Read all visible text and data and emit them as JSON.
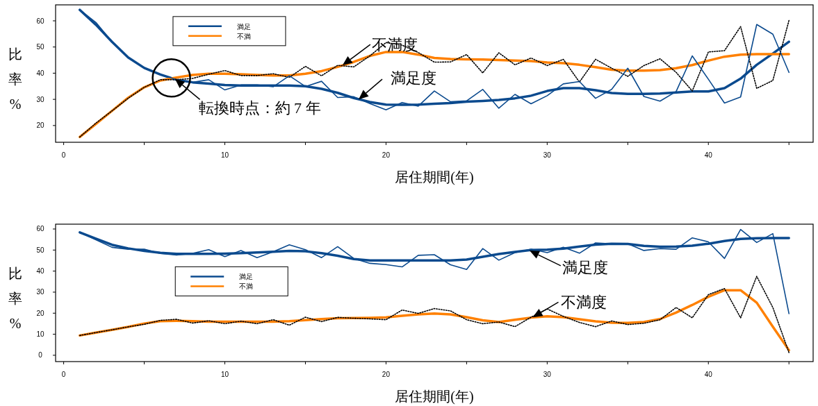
{
  "chart_data": [
    {
      "type": "line",
      "xlabel": "居住期間(年)",
      "ylabel": "比率%",
      "legend": "top left",
      "grid": false,
      "x": [
        1,
        2,
        3,
        4,
        5,
        6,
        7,
        8,
        9,
        10,
        11,
        12,
        13,
        14,
        15,
        16,
        17,
        18,
        19,
        20,
        21,
        22,
        23,
        24,
        25,
        26,
        27,
        28,
        29,
        30,
        31,
        32,
        33,
        34,
        35,
        36,
        37,
        38,
        39,
        40,
        41,
        42,
        43,
        44,
        45
      ],
      "xlim": [
        -0.5,
        46.5
      ],
      "xticks": [
        0,
        {
          "value": 5,
          "label": null
        },
        10,
        {
          "value": 15,
          "label": null
        },
        20,
        {
          "value": 25,
          "label": null
        },
        30,
        {
          "value": 35,
          "label": null
        },
        40,
        {
          "value": 45,
          "label": null
        }
      ],
      "ylim": [
        13.6,
        66.1
      ],
      "yticks": [
        20,
        30,
        40,
        50,
        60
      ],
      "series": [
        {
          "color": "#000000",
          "line_style": "dotted",
          "values": [
            15.6,
            20.9,
            25.6,
            30.4,
            34.6,
            37.5,
            37.5,
            38,
            39.6,
            41,
            39.1,
            39.1,
            39.8,
            38.4,
            42.6,
            39,
            43,
            42.4,
            46.6,
            51.7,
            50.7,
            47.9,
            44.2,
            44.3,
            47.1,
            40.1,
            47.8,
            43.2,
            45.8,
            42.9,
            45.3,
            36.6,
            45.3,
            41.9,
            38.8,
            42.9,
            45.5,
            40.3,
            33.2,
            48.1,
            48.6,
            57.8,
            34.2,
            37.2,
            60.1
          ]
        },
        {
          "color": "#0b4a8e",
          "line_style": "solid",
          "values": [
            64.2,
            59.4,
            52,
            46,
            42,
            39.5,
            37.5,
            36.5,
            37.5,
            33.6,
            35.5,
            35.5,
            34.8,
            39,
            34.9,
            36.9,
            30.7,
            31,
            28.4,
            26,
            28.8,
            27.4,
            33.2,
            29.1,
            29.4,
            33.8,
            26.6,
            31.9,
            28.3,
            31.4,
            35.9,
            36.8,
            30.4,
            33.8,
            41.9,
            31.1,
            29.3,
            33,
            46.6,
            37.7,
            28.6,
            30.9,
            58.6,
            54.9,
            40.3
          ]
        },
        {
          "name": "満足",
          "color": "#0b4a8e",
          "line_style": "solid",
          "values": [
            64.2,
            58.5,
            52,
            46,
            42,
            39.5,
            37.5,
            36.5,
            36,
            35.5,
            35.3,
            35.3,
            35.3,
            35.3,
            35,
            34,
            32.5,
            30.5,
            29,
            28,
            27.9,
            28,
            28.3,
            28.6,
            29.1,
            29.4,
            29.8,
            30.4,
            31.4,
            33.2,
            34.3,
            34.3,
            33.5,
            32.4,
            32.1,
            32.1,
            32.2,
            32.6,
            33,
            33,
            34.3,
            37.9,
            43.2,
            47.5,
            52
          ]
        },
        {
          "name": "不満",
          "color": "#ff8000",
          "line_style": "solid",
          "values": [
            15.6,
            20.6,
            25.6,
            30.6,
            34.6,
            37.2,
            38.3,
            39.3,
            39.8,
            39.8,
            39.6,
            39.3,
            39.1,
            39.1,
            39.8,
            40.8,
            42.4,
            44.3,
            46.6,
            48.1,
            48.1,
            47.1,
            45.8,
            45.4,
            45.3,
            45.2,
            45,
            44.8,
            44.6,
            44.1,
            43.8,
            43.2,
            42.3,
            41.3,
            41,
            41,
            41.2,
            41.9,
            43.1,
            44.8,
            46.3,
            47.1,
            47.3,
            47.3,
            47.3
          ]
        }
      ],
      "annotations": [
        {
          "text": "転換時点：約 7 年",
          "x": 6.9,
          "y": 37.9
        },
        {
          "text": "不満度",
          "x": 17.3,
          "y": 43
        },
        {
          "text": "満足度",
          "x": 18.3,
          "y": 30
        }
      ]
    },
    {
      "type": "line",
      "xlabel": "居住期間(年)",
      "ylabel": "比率%",
      "legend": "left",
      "grid": false,
      "x": [
        1,
        2,
        3,
        4,
        5,
        6,
        7,
        8,
        9,
        10,
        11,
        12,
        13,
        14,
        15,
        16,
        17,
        18,
        19,
        20,
        21,
        22,
        23,
        24,
        25,
        26,
        27,
        28,
        29,
        30,
        31,
        32,
        33,
        34,
        35,
        36,
        37,
        38,
        39,
        40,
        41,
        42,
        43,
        44,
        45
      ],
      "xlim": [
        -0.5,
        46.5
      ],
      "xticks": [
        0,
        {
          "value": 5,
          "label": null
        },
        10,
        {
          "value": 15,
          "label": null
        },
        20,
        {
          "value": 25,
          "label": null
        },
        30,
        {
          "value": 35,
          "label": null
        },
        40,
        {
          "value": 45,
          "label": null
        }
      ],
      "ylim": [
        -3,
        62.3
      ],
      "yticks": [
        0,
        10,
        20,
        30,
        40,
        50,
        60
      ],
      "series": [
        {
          "color": "#000000",
          "line_style": "dotted",
          "values": [
            9.4,
            10.8,
            12.1,
            13.5,
            14.7,
            16.6,
            17.1,
            15.3,
            16.4,
            15,
            16.2,
            15,
            16.9,
            14.3,
            18.1,
            16,
            18,
            17.6,
            17.3,
            16.9,
            21.5,
            19.9,
            22.2,
            21.1,
            16.9,
            15,
            15.8,
            13.6,
            18.1,
            22,
            18.5,
            15.6,
            13.6,
            16.3,
            14.6,
            15.2,
            16.9,
            22.7,
            17.8,
            28.8,
            31.7,
            17.8,
            37.5,
            22.7,
            1.3
          ]
        },
        {
          "color": "#0b4a8e",
          "line_style": "solid",
          "values": [
            58.4,
            54.9,
            51.3,
            50.4,
            50.4,
            48.4,
            47.6,
            48.4,
            50.2,
            46.9,
            49.8,
            46.4,
            49.2,
            52.5,
            50.2,
            46.4,
            51.6,
            46,
            43.7,
            43.1,
            42,
            47.5,
            47.8,
            43,
            40.8,
            50.7,
            45.2,
            48.8,
            50.4,
            48.8,
            51.3,
            48.5,
            53.4,
            53,
            53,
            49.8,
            50.7,
            50.4,
            55.8,
            53.9,
            46,
            59.8,
            53.6,
            57.8,
            19.8
          ]
        },
        {
          "name": "満足",
          "color": "#0b4a8e",
          "line_style": "solid",
          "values": [
            58.4,
            55.4,
            52.5,
            50.8,
            49.6,
            48.7,
            48.2,
            48.2,
            48.2,
            48.3,
            48.5,
            48.9,
            49.2,
            49.6,
            49.4,
            48.5,
            47.3,
            45.7,
            45.1,
            45.1,
            45.1,
            45.1,
            45.1,
            45.1,
            45.5,
            46.8,
            48.1,
            49.1,
            50,
            50.2,
            50.7,
            51.7,
            52.6,
            53,
            52.9,
            52,
            51.6,
            51.7,
            52.1,
            53,
            54.3,
            55.3,
            55.6,
            55.7,
            55.7
          ]
        },
        {
          "name": "不満",
          "color": "#ff8000",
          "line_style": "solid",
          "values": [
            9.4,
            10.8,
            12.1,
            13.5,
            15.1,
            16.2,
            16.4,
            16.2,
            16,
            16,
            16,
            16,
            16,
            16.2,
            16.7,
            17.2,
            17.6,
            17.7,
            17.8,
            18,
            18.8,
            19.4,
            19.8,
            19.4,
            18.1,
            16.6,
            15.8,
            16.9,
            17.9,
            18.5,
            18.1,
            17.1,
            16.1,
            15.5,
            15.4,
            15.8,
            17.2,
            20.3,
            23.9,
            27.8,
            30.9,
            30.9,
            25,
            13.6,
            2.4
          ]
        }
      ],
      "annotations": [
        {
          "text": "満足度",
          "x": 28.9,
          "y": 49.8
        },
        {
          "text": "不満度",
          "x": 29.1,
          "y": 18
        }
      ]
    }
  ]
}
